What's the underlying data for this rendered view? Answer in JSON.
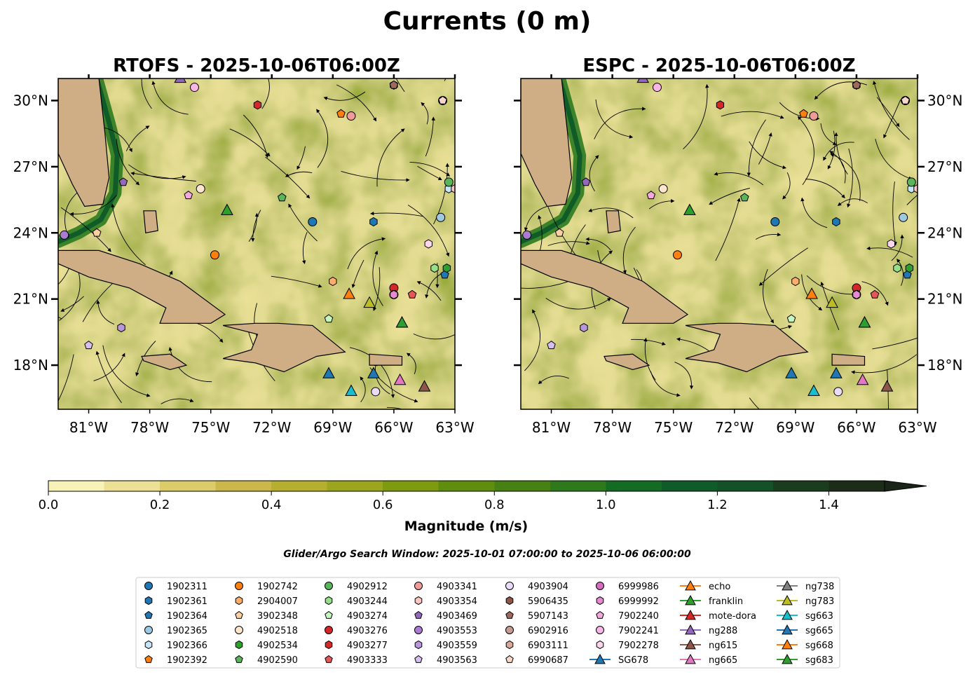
{
  "title": "Currents (0 m)",
  "chart_data": [
    {
      "type": "heatmap",
      "title": "RTOFS - 2025-10-06T06:00Z",
      "model": "RTOFS",
      "x_ticks": [
        "81°W",
        "78°W",
        "75°W",
        "72°W",
        "69°W",
        "66°W",
        "63°W"
      ],
      "y_ticks": [
        "18°N",
        "21°N",
        "24°N",
        "27°N",
        "30°N"
      ],
      "xlim": [
        -82.5,
        -63.0
      ],
      "ylim": [
        16.0,
        31.0
      ],
      "y_tick_side": "left"
    },
    {
      "type": "heatmap",
      "title": "ESPC - 2025-10-06T06:00Z",
      "model": "ESPC",
      "x_ticks": [
        "81°W",
        "78°W",
        "75°W",
        "72°W",
        "69°W",
        "66°W",
        "63°W"
      ],
      "y_ticks": [
        "18°N",
        "21°N",
        "24°N",
        "27°N",
        "30°N"
      ],
      "xlim": [
        -82.5,
        -63.0
      ],
      "ylim": [
        16.0,
        31.0
      ],
      "y_tick_side": "right"
    }
  ],
  "colorbar": {
    "label": "Magnitude (m/s)",
    "ticks": [
      "0.0",
      "0.2",
      "0.4",
      "0.6",
      "0.8",
      "1.0",
      "1.2",
      "1.4"
    ],
    "range": [
      0.0,
      1.5
    ],
    "colors": [
      "#f7f3b6",
      "#ebe094",
      "#dbcb69",
      "#ccb84a",
      "#b5ae2e",
      "#9ba61e",
      "#7e9a0e",
      "#5f8e0e",
      "#478113",
      "#2e7a1b",
      "#146b24",
      "#0f5c28",
      "#155127",
      "#1a3d20",
      "#1c2c19"
    ]
  },
  "search_window": "Glider/Argo Search Window: 2025-10-01 07:00:00 to 2025-10-06 06:00:00",
  "legend": [
    {
      "label": "1902311",
      "marker": "circle",
      "color": "#1f77b4"
    },
    {
      "label": "1902361",
      "marker": "hexagon",
      "color": "#1f77b4"
    },
    {
      "label": "1902364",
      "marker": "pentagon",
      "color": "#1f77b4"
    },
    {
      "label": "1902365",
      "marker": "circle",
      "color": "#9ecae1"
    },
    {
      "label": "1902366",
      "marker": "hexagon",
      "color": "#c6e6f7"
    },
    {
      "label": "1902392",
      "marker": "pentagon",
      "color": "#ff7f0e"
    },
    {
      "label": "1902742",
      "marker": "circle",
      "color": "#ff7f0e"
    },
    {
      "label": "2904007",
      "marker": "hexagon",
      "color": "#fdae6b"
    },
    {
      "label": "3902348",
      "marker": "pentagon",
      "color": "#fdd0a2"
    },
    {
      "label": "4902518",
      "marker": "circle",
      "color": "#fee6ce"
    },
    {
      "label": "4902534",
      "marker": "hexagon",
      "color": "#2ca02c"
    },
    {
      "label": "4902590",
      "marker": "pentagon",
      "color": "#5ab45a"
    },
    {
      "label": "4902912",
      "marker": "circle",
      "color": "#5ab45a"
    },
    {
      "label": "4903244",
      "marker": "hexagon",
      "color": "#98df8a"
    },
    {
      "label": "4903274",
      "marker": "pentagon",
      "color": "#c7f5c0"
    },
    {
      "label": "4903276",
      "marker": "circle",
      "color": "#d62728"
    },
    {
      "label": "4903277",
      "marker": "hexagon",
      "color": "#d62728"
    },
    {
      "label": "4903333",
      "marker": "pentagon",
      "color": "#e45756"
    },
    {
      "label": "4903341",
      "marker": "circle",
      "color": "#f09b99"
    },
    {
      "label": "4903354",
      "marker": "hexagon",
      "color": "#fcc5c0"
    },
    {
      "label": "4903469",
      "marker": "pentagon",
      "color": "#9467bd"
    },
    {
      "label": "4903553",
      "marker": "circle",
      "color": "#a97bd1"
    },
    {
      "label": "4903559",
      "marker": "hexagon",
      "color": "#b896dc"
    },
    {
      "label": "4903563",
      "marker": "pentagon",
      "color": "#d4bfee"
    },
    {
      "label": "4903904",
      "marker": "circle",
      "color": "#eadcf8"
    },
    {
      "label": "5906435",
      "marker": "hexagon",
      "color": "#8c564b"
    },
    {
      "label": "5907143",
      "marker": "pentagon",
      "color": "#a0695e"
    },
    {
      "label": "6902916",
      "marker": "circle",
      "color": "#c49c94"
    },
    {
      "label": "6903111",
      "marker": "hexagon",
      "color": "#d8a998"
    },
    {
      "label": "6990687",
      "marker": "pentagon",
      "color": "#f7d6cc"
    },
    {
      "label": "6999986",
      "marker": "circle",
      "color": "#d46cbf"
    },
    {
      "label": "6999992",
      "marker": "hexagon",
      "color": "#e58ad0"
    },
    {
      "label": "7902240",
      "marker": "pentagon",
      "color": "#f3a9de"
    },
    {
      "label": "7902241",
      "marker": "circle",
      "color": "#f7b6e6"
    },
    {
      "label": "7902278",
      "marker": "hexagon",
      "color": "#fcd5ef"
    },
    {
      "label": "SG678",
      "marker": "triangle",
      "color": "#1f77b4"
    },
    {
      "label": "echo",
      "marker": "triangle",
      "color": "#ff7f0e"
    },
    {
      "label": "franklin",
      "marker": "triangle",
      "color": "#2ca02c"
    },
    {
      "label": "mote-dora",
      "marker": "triangle",
      "color": "#d62728"
    },
    {
      "label": "ng288",
      "marker": "triangle",
      "color": "#9467bd"
    },
    {
      "label": "ng615",
      "marker": "triangle",
      "color": "#8c564b"
    },
    {
      "label": "ng665",
      "marker": "triangle",
      "color": "#e377c2"
    },
    {
      "label": "ng738",
      "marker": "triangle",
      "color": "#7f7f7f"
    },
    {
      "label": "ng783",
      "marker": "triangle",
      "color": "#bcbd22"
    },
    {
      "label": "sg663",
      "marker": "triangle",
      "color": "#17becf"
    },
    {
      "label": "sg665",
      "marker": "triangle",
      "color": "#1f77b4"
    },
    {
      "label": "sg668",
      "marker": "triangle",
      "color": "#ff7f0e"
    },
    {
      "label": "sg683",
      "marker": "triangle",
      "color": "#2ca02c"
    }
  ],
  "markers": [
    {
      "label": "1902311",
      "lon": -70.0,
      "lat": 24.5
    },
    {
      "label": "1902361",
      "lon": -67.0,
      "lat": 24.5
    },
    {
      "label": "1902364",
      "lon": -63.5,
      "lat": 22.1
    },
    {
      "label": "1902365",
      "lon": -63.7,
      "lat": 24.7
    },
    {
      "label": "1902366",
      "lon": -63.3,
      "lat": 26.0
    },
    {
      "label": "1902392",
      "lon": -68.6,
      "lat": 29.4
    },
    {
      "label": "1902742",
      "lon": -74.8,
      "lat": 23.0
    },
    {
      "label": "2904007",
      "lon": -69.0,
      "lat": 21.8
    },
    {
      "label": "3902348",
      "lon": -80.6,
      "lat": 24.0
    },
    {
      "label": "4902518",
      "lon": -75.5,
      "lat": 26.0
    },
    {
      "label": "4902534",
      "lon": -63.4,
      "lat": 22.4
    },
    {
      "label": "4902590",
      "lon": -71.5,
      "lat": 25.6
    },
    {
      "label": "4902912",
      "lon": -63.3,
      "lat": 26.3
    },
    {
      "label": "4903244",
      "lon": -64.0,
      "lat": 22.4
    },
    {
      "label": "4903274",
      "lon": -69.2,
      "lat": 20.1
    },
    {
      "label": "4903276",
      "lon": -66.0,
      "lat": 21.5
    },
    {
      "label": "4903277",
      "lon": -72.7,
      "lat": 29.8
    },
    {
      "label": "4903333",
      "lon": -65.1,
      "lat": 21.2
    },
    {
      "label": "4903341",
      "lon": -68.1,
      "lat": 29.3
    },
    {
      "label": "4903354",
      "lon": -63.0,
      "lat": 26.0
    },
    {
      "label": "4903469",
      "lon": -79.3,
      "lat": 26.3
    },
    {
      "label": "4903553",
      "lon": -82.2,
      "lat": 23.9
    },
    {
      "label": "4903559",
      "lon": -79.4,
      "lat": 19.7
    },
    {
      "label": "4903563",
      "lon": -81.0,
      "lat": 18.9
    },
    {
      "label": "4903904",
      "lon": -66.9,
      "lat": 16.8
    },
    {
      "label": "5906435",
      "lon": -66.0,
      "lat": 30.7
    },
    {
      "label": "5907143",
      "lon": -66.0,
      "lat": 30.7
    },
    {
      "label": "6902916",
      "lon": -63.6,
      "lat": 30.0
    },
    {
      "label": "6903111",
      "lon": -63.6,
      "lat": 30.0
    },
    {
      "label": "6990687",
      "lon": -63.6,
      "lat": 30.0
    },
    {
      "label": "6999986",
      "lon": -66.0,
      "lat": 21.2
    },
    {
      "label": "6999992",
      "lon": -66.0,
      "lat": 21.2
    },
    {
      "label": "7902240",
      "lon": -76.1,
      "lat": 25.7
    },
    {
      "label": "7902241",
      "lon": -75.8,
      "lat": 30.6
    },
    {
      "label": "7902278",
      "lon": -64.3,
      "lat": 23.5
    },
    {
      "label": "SG678",
      "lon": -69.2,
      "lat": 17.6
    },
    {
      "label": "echo",
      "lon": -68.2,
      "lat": 21.2
    },
    {
      "label": "franklin",
      "lon": -74.2,
      "lat": 25.0
    },
    {
      "label": "ng288",
      "lon": -76.5,
      "lat": 31.0
    },
    {
      "label": "ng615",
      "lon": -64.5,
      "lat": 17.0
    },
    {
      "label": "ng665",
      "lon": -65.7,
      "lat": 17.3
    },
    {
      "label": "ng783",
      "lon": -67.2,
      "lat": 20.8
    },
    {
      "label": "sg663",
      "lon": -68.1,
      "lat": 16.8
    },
    {
      "label": "sg665",
      "lon": -67.0,
      "lat": 17.6
    },
    {
      "label": "sg668",
      "lon": -65.6,
      "lat": 19.9
    },
    {
      "label": "sg683",
      "lon": -65.6,
      "lat": 19.9
    }
  ]
}
